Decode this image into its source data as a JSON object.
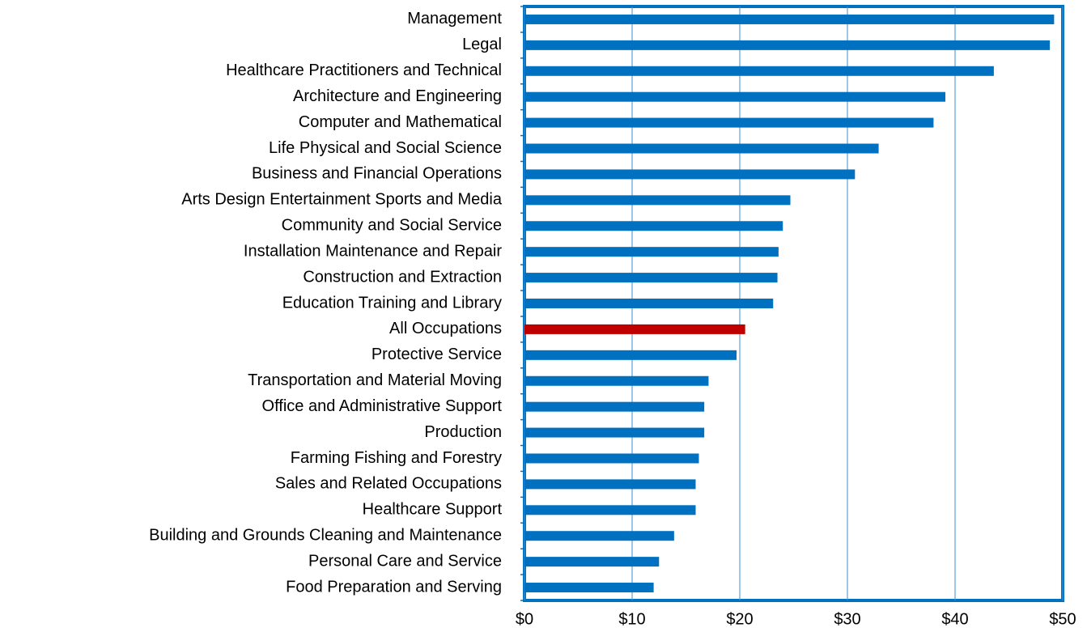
{
  "chart_data": {
    "type": "barh",
    "categories": [
      "Management",
      "Legal",
      "Healthcare Practitioners and Technical",
      "Architecture and Engineering",
      "Computer and Mathematical",
      "Life Physical and Social Science",
      "Business and Financial Operations",
      "Arts Design Entertainment Sports and Media",
      "Community and Social Service",
      "Installation Maintenance and Repair",
      "Construction and Extraction",
      "Education Training and Library",
      "All Occupations",
      "Protective Service",
      "Transportation and Material Moving",
      "Office and Administrative Support",
      "Production",
      "Farming Fishing and Forestry",
      "Sales and Related Occupations",
      "Healthcare Support",
      "Building and Grounds Cleaning and Maintenance",
      "Personal Care and Service",
      "Food Preparation and Serving"
    ],
    "values": [
      49.2,
      48.8,
      43.6,
      39.1,
      38.0,
      32.9,
      30.7,
      24.7,
      24.0,
      23.6,
      23.5,
      23.1,
      20.5,
      19.7,
      17.1,
      16.7,
      16.7,
      16.2,
      15.9,
      15.9,
      13.9,
      12.5,
      12.0
    ],
    "colors": [
      "#0070c0",
      "#0070c0",
      "#0070c0",
      "#0070c0",
      "#0070c0",
      "#0070c0",
      "#0070c0",
      "#0070c0",
      "#0070c0",
      "#0070c0",
      "#0070c0",
      "#0070c0",
      "#c00000",
      "#0070c0",
      "#0070c0",
      "#0070c0",
      "#0070c0",
      "#0070c0",
      "#0070c0",
      "#0070c0",
      "#0070c0",
      "#0070c0",
      "#0070c0"
    ],
    "xlim": [
      0,
      50
    ],
    "xticks": [
      {
        "value": 0,
        "label": "$0"
      },
      {
        "value": 10,
        "label": "$10"
      },
      {
        "value": 20,
        "label": "$20"
      },
      {
        "value": 30,
        "label": "$30"
      },
      {
        "value": 40,
        "label": "$40"
      },
      {
        "value": 50,
        "label": "$50"
      }
    ],
    "grid": true
  }
}
